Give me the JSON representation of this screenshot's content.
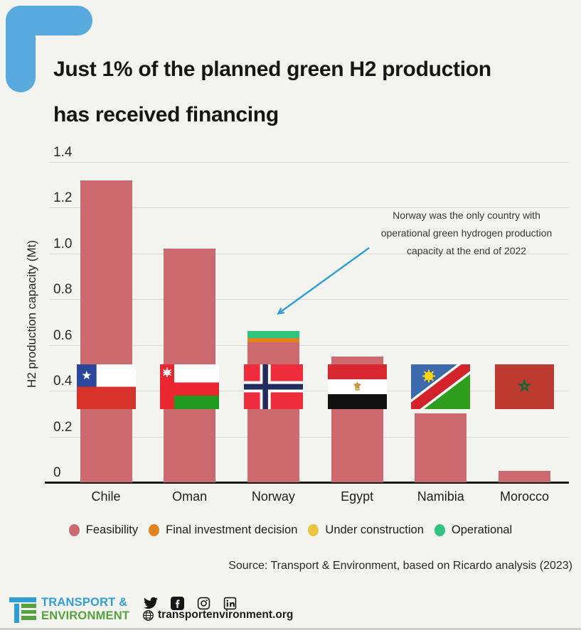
{
  "header": {
    "title_line1": "Just 1% of the planned green H2 production",
    "title_line2": "has received financing"
  },
  "chart_data": {
    "type": "bar",
    "stacked": true,
    "title": "",
    "xlabel": "",
    "ylabel": "H2 production capacity (Mt)",
    "ylim": [
      0,
      1.4
    ],
    "yticks": [
      0,
      0.2,
      0.4,
      0.6,
      0.8,
      1.0,
      1.2,
      1.4
    ],
    "ytick_labels": [
      "0",
      "0.2",
      "0.4",
      "0.6",
      "0.8",
      "1.0",
      "1.2",
      "1.4"
    ],
    "grid": true,
    "legend_position": "bottom",
    "categories": [
      "Chile",
      "Oman",
      "Norway",
      "Egypt",
      "Namibia",
      "Morocco"
    ],
    "series": [
      {
        "name": "Feasibility",
        "color": "#cc6a70",
        "values": [
          1.32,
          1.02,
          0.61,
          0.55,
          0.3,
          0.05
        ]
      },
      {
        "name": "Final investment decision",
        "color": "#e0821d",
        "values": [
          0,
          0,
          0.02,
          0,
          0,
          0
        ]
      },
      {
        "name": "Under construction",
        "color": "#ecc23e",
        "values": [
          0,
          0,
          0,
          0,
          0,
          0
        ]
      },
      {
        "name": "Operational",
        "color": "#2fc57f",
        "values": [
          0,
          0,
          0.03,
          0,
          0,
          0
        ]
      }
    ],
    "annotation": {
      "lines": [
        "Norway was the only country with",
        "operational green hydrogen production",
        "capacity at the end of 2022"
      ],
      "arrow_color": "#2d9fd6",
      "target_category": "Norway"
    }
  },
  "source": "Source: Transport & Environment, based on Ricardo analysis (2023)",
  "footer": {
    "logo_line1": "TRANSPORT &",
    "logo_line2": "ENVIRONMENT",
    "website": "transportenvironment.org",
    "social_icons": [
      "twitter",
      "facebook",
      "instagram",
      "linkedin"
    ]
  },
  "colors": {
    "background": "#f3f3f0",
    "accent_blue": "#58a9dd",
    "logo_blue": "#2d9fd6",
    "logo_green": "#55a33e",
    "gridline": "#d8d8d4",
    "feasibility": "#cc6a70",
    "final_investment_decision": "#e0821d",
    "under_construction": "#ecc23e",
    "operational": "#2fc57f"
  }
}
